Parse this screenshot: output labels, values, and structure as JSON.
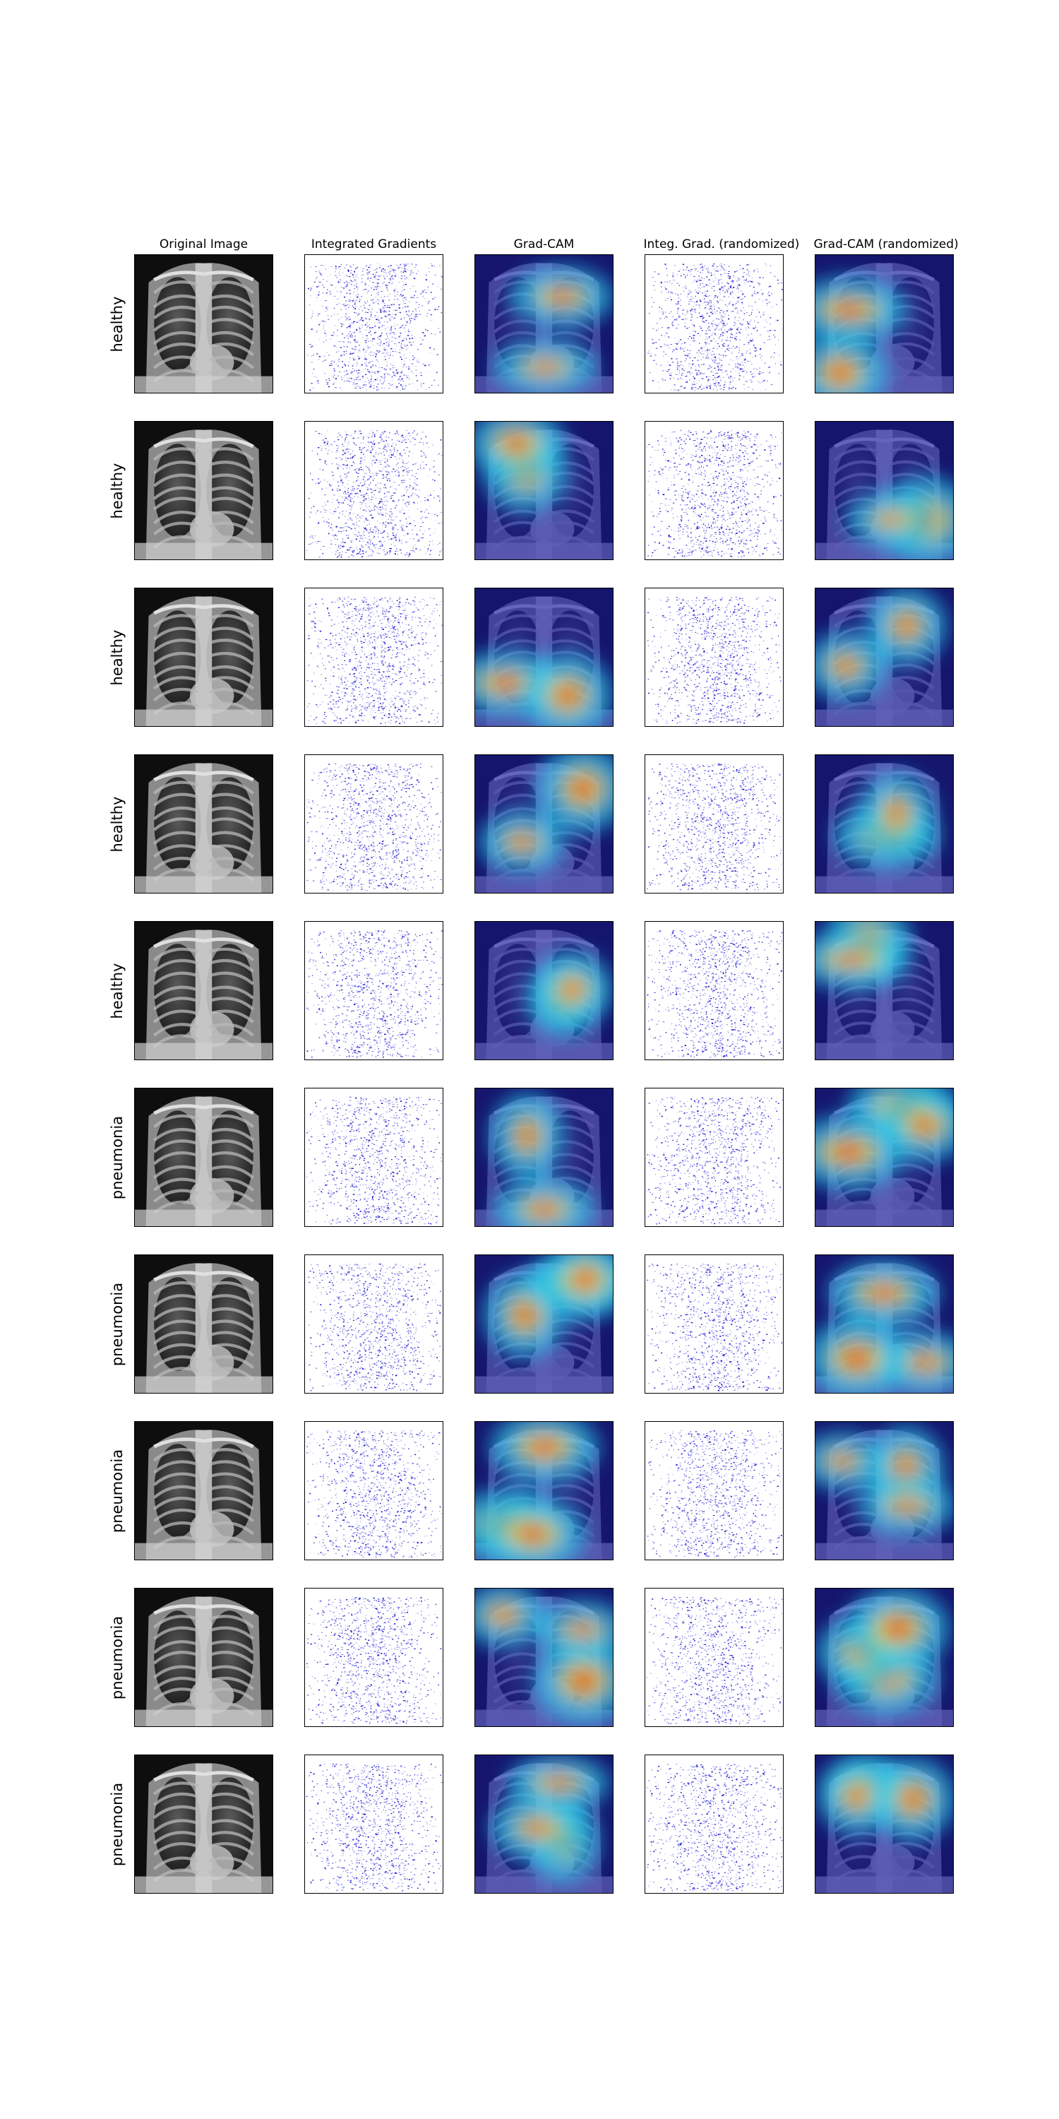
{
  "columns": [
    {
      "title": "Original Image",
      "kind": "xray"
    },
    {
      "title": "Integrated Gradients",
      "kind": "ig"
    },
    {
      "title": "Grad-CAM",
      "kind": "cam"
    },
    {
      "title": "Integ. Grad. (randomized)",
      "kind": "ig"
    },
    {
      "title": "Grad-CAM (randomized)",
      "kind": "cam"
    }
  ],
  "rows": [
    {
      "label": "healthy"
    },
    {
      "label": "healthy"
    },
    {
      "label": "healthy"
    },
    {
      "label": "healthy"
    },
    {
      "label": "healthy"
    },
    {
      "label": "pneumonia"
    },
    {
      "label": "pneumonia"
    },
    {
      "label": "pneumonia"
    },
    {
      "label": "pneumonia"
    },
    {
      "label": "pneumonia"
    }
  ],
  "colors": {
    "ig_dots": "#0000cc",
    "cam_low": "#1a1aa8",
    "cam_mid": "#22c8e8",
    "cam_high": "#e83a1a",
    "xray_bg": "#111111"
  }
}
